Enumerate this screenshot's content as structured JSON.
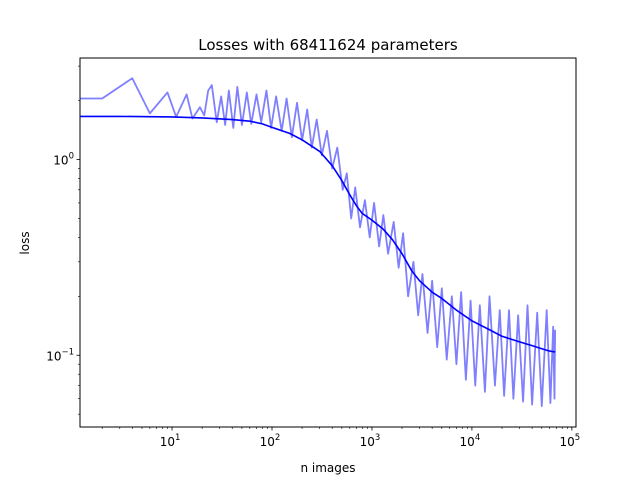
{
  "chart_data": {
    "type": "line",
    "title": "Losses with 68411624 parameters",
    "xlabel": "n images",
    "ylabel": "loss",
    "xscale": "log",
    "yscale": "log",
    "xlim": [
      1.2,
      110000
    ],
    "ylim": [
      0.043,
      3.3
    ],
    "grid": false,
    "legend": "none",
    "x_ticks": [
      {
        "value": 10,
        "base": "10",
        "exp": "1"
      },
      {
        "value": 100,
        "base": "10",
        "exp": "2"
      },
      {
        "value": 1000,
        "base": "10",
        "exp": "3"
      },
      {
        "value": 10000,
        "base": "10",
        "exp": "4"
      },
      {
        "value": 100000,
        "base": "10",
        "exp": "5"
      }
    ],
    "y_ticks": [
      {
        "value": 1,
        "base": "10",
        "exp": "0"
      },
      {
        "value": 0.1,
        "base": "10",
        "exp": "−1"
      }
    ],
    "series": [
      {
        "role": "raw",
        "color": "#8080ff",
        "points": [
          [
            1,
            2.05
          ],
          [
            2,
            2.05
          ],
          [
            4,
            2.6
          ],
          [
            6,
            1.72
          ],
          [
            9,
            2.2
          ],
          [
            11,
            1.65
          ],
          [
            14,
            2.15
          ],
          [
            16,
            1.62
          ],
          [
            19,
            1.85
          ],
          [
            21,
            1.68
          ],
          [
            23,
            2.25
          ],
          [
            25,
            2.4
          ],
          [
            28,
            1.55
          ],
          [
            31,
            2.1
          ],
          [
            34,
            1.5
          ],
          [
            37,
            2.25
          ],
          [
            41,
            1.45
          ],
          [
            45,
            2.35
          ],
          [
            50,
            1.5
          ],
          [
            56,
            2.2
          ],
          [
            62,
            1.52
          ],
          [
            70,
            2.15
          ],
          [
            78,
            1.55
          ],
          [
            88,
            2.25
          ],
          [
            98,
            1.45
          ],
          [
            110,
            2.1
          ],
          [
            125,
            1.4
          ],
          [
            140,
            2.05
          ],
          [
            158,
            1.3
          ],
          [
            178,
            1.95
          ],
          [
            200,
            1.25
          ],
          [
            225,
            1.8
          ],
          [
            250,
            1.15
          ],
          [
            280,
            1.6
          ],
          [
            315,
            1.05
          ],
          [
            355,
            1.4
          ],
          [
            400,
            0.9
          ],
          [
            450,
            1.15
          ],
          [
            510,
            0.7
          ],
          [
            560,
            0.85
          ],
          [
            620,
            0.5
          ],
          [
            680,
            0.72
          ],
          [
            760,
            0.45
          ],
          [
            850,
            0.62
          ],
          [
            950,
            0.4
          ],
          [
            1050,
            0.6
          ],
          [
            1180,
            0.36
          ],
          [
            1300,
            0.52
          ],
          [
            1450,
            0.33
          ],
          [
            1650,
            0.48
          ],
          [
            1850,
            0.28
          ],
          [
            2050,
            0.42
          ],
          [
            2300,
            0.2
          ],
          [
            2600,
            0.3
          ],
          [
            2900,
            0.16
          ],
          [
            3200,
            0.26
          ],
          [
            3600,
            0.13
          ],
          [
            4000,
            0.24
          ],
          [
            4500,
            0.11
          ],
          [
            5000,
            0.22
          ],
          [
            5600,
            0.095
          ],
          [
            6300,
            0.2
          ],
          [
            7000,
            0.09
          ],
          [
            7800,
            0.21
          ],
          [
            8700,
            0.075
          ],
          [
            9700,
            0.19
          ],
          [
            10800,
            0.07
          ],
          [
            12000,
            0.18
          ],
          [
            13500,
            0.065
          ],
          [
            15000,
            0.2
          ],
          [
            17000,
            0.07
          ],
          [
            19000,
            0.17
          ],
          [
            21000,
            0.062
          ],
          [
            23500,
            0.17
          ],
          [
            26000,
            0.06
          ],
          [
            29000,
            0.16
          ],
          [
            32500,
            0.058
          ],
          [
            36000,
            0.18
          ],
          [
            40000,
            0.056
          ],
          [
            45000,
            0.165
          ],
          [
            50000,
            0.055
          ],
          [
            56000,
            0.17
          ],
          [
            61000,
            0.057
          ],
          [
            65000,
            0.14
          ],
          [
            67000,
            0.06
          ],
          [
            68000,
            0.135
          ]
        ]
      },
      {
        "role": "smoothed",
        "color": "#0000ff",
        "points": [
          [
            1.2,
            1.66
          ],
          [
            3,
            1.66
          ],
          [
            10,
            1.65
          ],
          [
            20,
            1.63
          ],
          [
            40,
            1.6
          ],
          [
            60,
            1.57
          ],
          [
            80,
            1.52
          ],
          [
            100,
            1.46
          ],
          [
            150,
            1.36
          ],
          [
            200,
            1.26
          ],
          [
            300,
            1.1
          ],
          [
            400,
            0.93
          ],
          [
            500,
            0.78
          ],
          [
            600,
            0.66
          ],
          [
            700,
            0.58
          ],
          [
            800,
            0.53
          ],
          [
            1000,
            0.49
          ],
          [
            1300,
            0.44
          ],
          [
            1600,
            0.39
          ],
          [
            2000,
            0.33
          ],
          [
            2500,
            0.27
          ],
          [
            3000,
            0.24
          ],
          [
            4000,
            0.21
          ],
          [
            5000,
            0.195
          ],
          [
            7000,
            0.17
          ],
          [
            10000,
            0.15
          ],
          [
            15000,
            0.135
          ],
          [
            20000,
            0.125
          ],
          [
            30000,
            0.117
          ],
          [
            40000,
            0.112
          ],
          [
            50000,
            0.108
          ],
          [
            60000,
            0.105
          ],
          [
            68000,
            0.104
          ]
        ]
      }
    ]
  }
}
